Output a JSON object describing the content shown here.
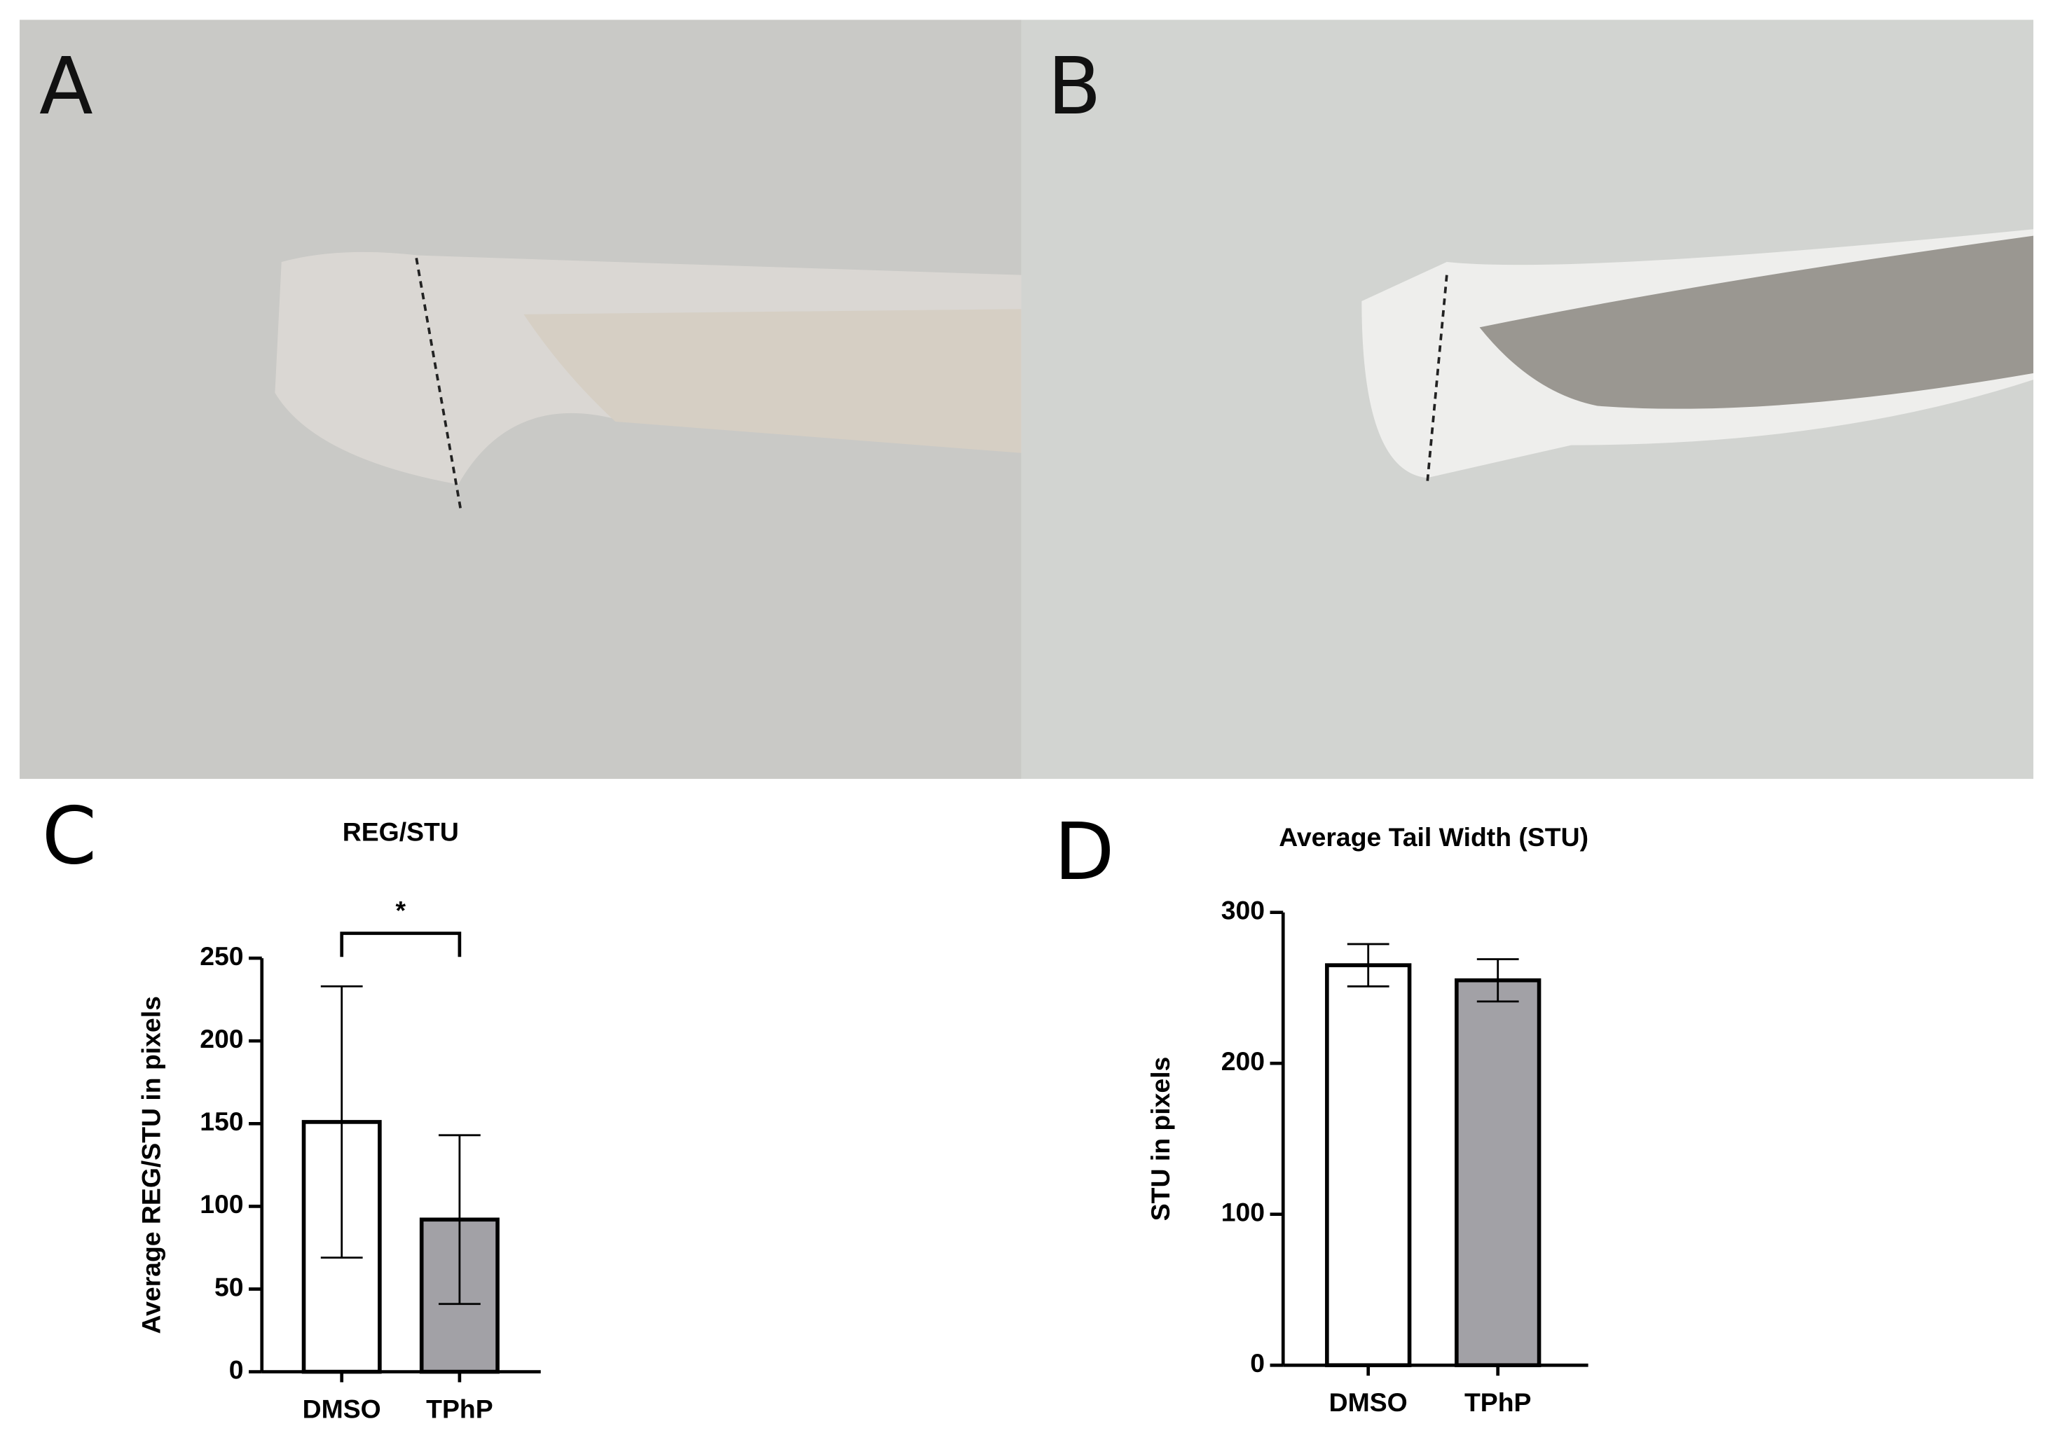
{
  "panels": [
    "A",
    "B",
    "C",
    "D"
  ],
  "chart_data": [
    {
      "type": "bar",
      "title": "REG/STU",
      "ylabel": "Average REG/STU in pixels",
      "categories": [
        "DMSO",
        "TPhP"
      ],
      "values": [
        151,
        92
      ],
      "errors": [
        82,
        51
      ],
      "colors": [
        "#ffffff",
        "#a2a1a6"
      ],
      "ylim": [
        0,
        250
      ],
      "yticks": [
        0,
        50,
        100,
        150,
        200,
        250
      ],
      "annotation": "*"
    },
    {
      "type": "bar",
      "title": "Average Tail Width (STU)",
      "ylabel": "STU in pixels",
      "categories": [
        "DMSO",
        "TPhP"
      ],
      "values": [
        265,
        255
      ],
      "errors": [
        14,
        14
      ],
      "colors": [
        "#ffffff",
        "#a2a1a6"
      ],
      "ylim": [
        0,
        300
      ],
      "yticks": [
        0,
        100,
        200,
        300
      ]
    }
  ]
}
